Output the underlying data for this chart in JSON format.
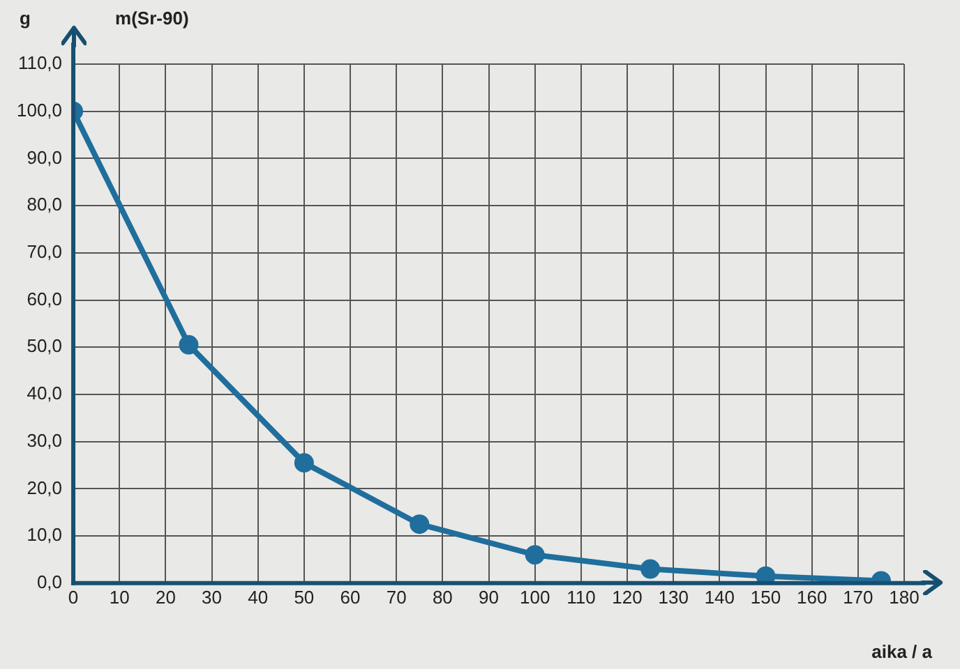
{
  "chart_data": {
    "type": "line",
    "title": "m(Sr-90)",
    "ylabel": "g",
    "xlabel": "aika / a",
    "x": [
      0,
      25,
      50,
      75,
      100,
      125,
      150,
      175
    ],
    "series": [
      {
        "color": "#1f6e9c",
        "values": [
          100,
          50.5,
          25.5,
          12.5,
          6,
          3,
          1.5,
          0.5
        ]
      }
    ],
    "xlim": [
      0,
      180
    ],
    "xticks": [
      0,
      10,
      20,
      30,
      40,
      50,
      60,
      70,
      80,
      90,
      100,
      110,
      120,
      130,
      140,
      150,
      160,
      170,
      180
    ],
    "ylim": [
      0,
      110
    ],
    "yticks": [
      {
        "value": 0,
        "label": "0,0"
      },
      {
        "value": 10,
        "label": "10,0"
      },
      {
        "value": 20,
        "label": "20,0"
      },
      {
        "value": 30,
        "label": "30,0"
      },
      {
        "value": 40,
        "label": "40,0"
      },
      {
        "value": 50,
        "label": "50,0"
      },
      {
        "value": 60,
        "label": "60,0"
      },
      {
        "value": 70,
        "label": "70,0"
      },
      {
        "value": 80,
        "label": "80,0"
      },
      {
        "value": 90,
        "label": "90,0"
      },
      {
        "value": 100,
        "label": "100,0"
      },
      {
        "value": 110,
        "label": "110,0"
      }
    ],
    "grid": true,
    "legend": false,
    "marker": "circle",
    "line_style": "solid"
  }
}
